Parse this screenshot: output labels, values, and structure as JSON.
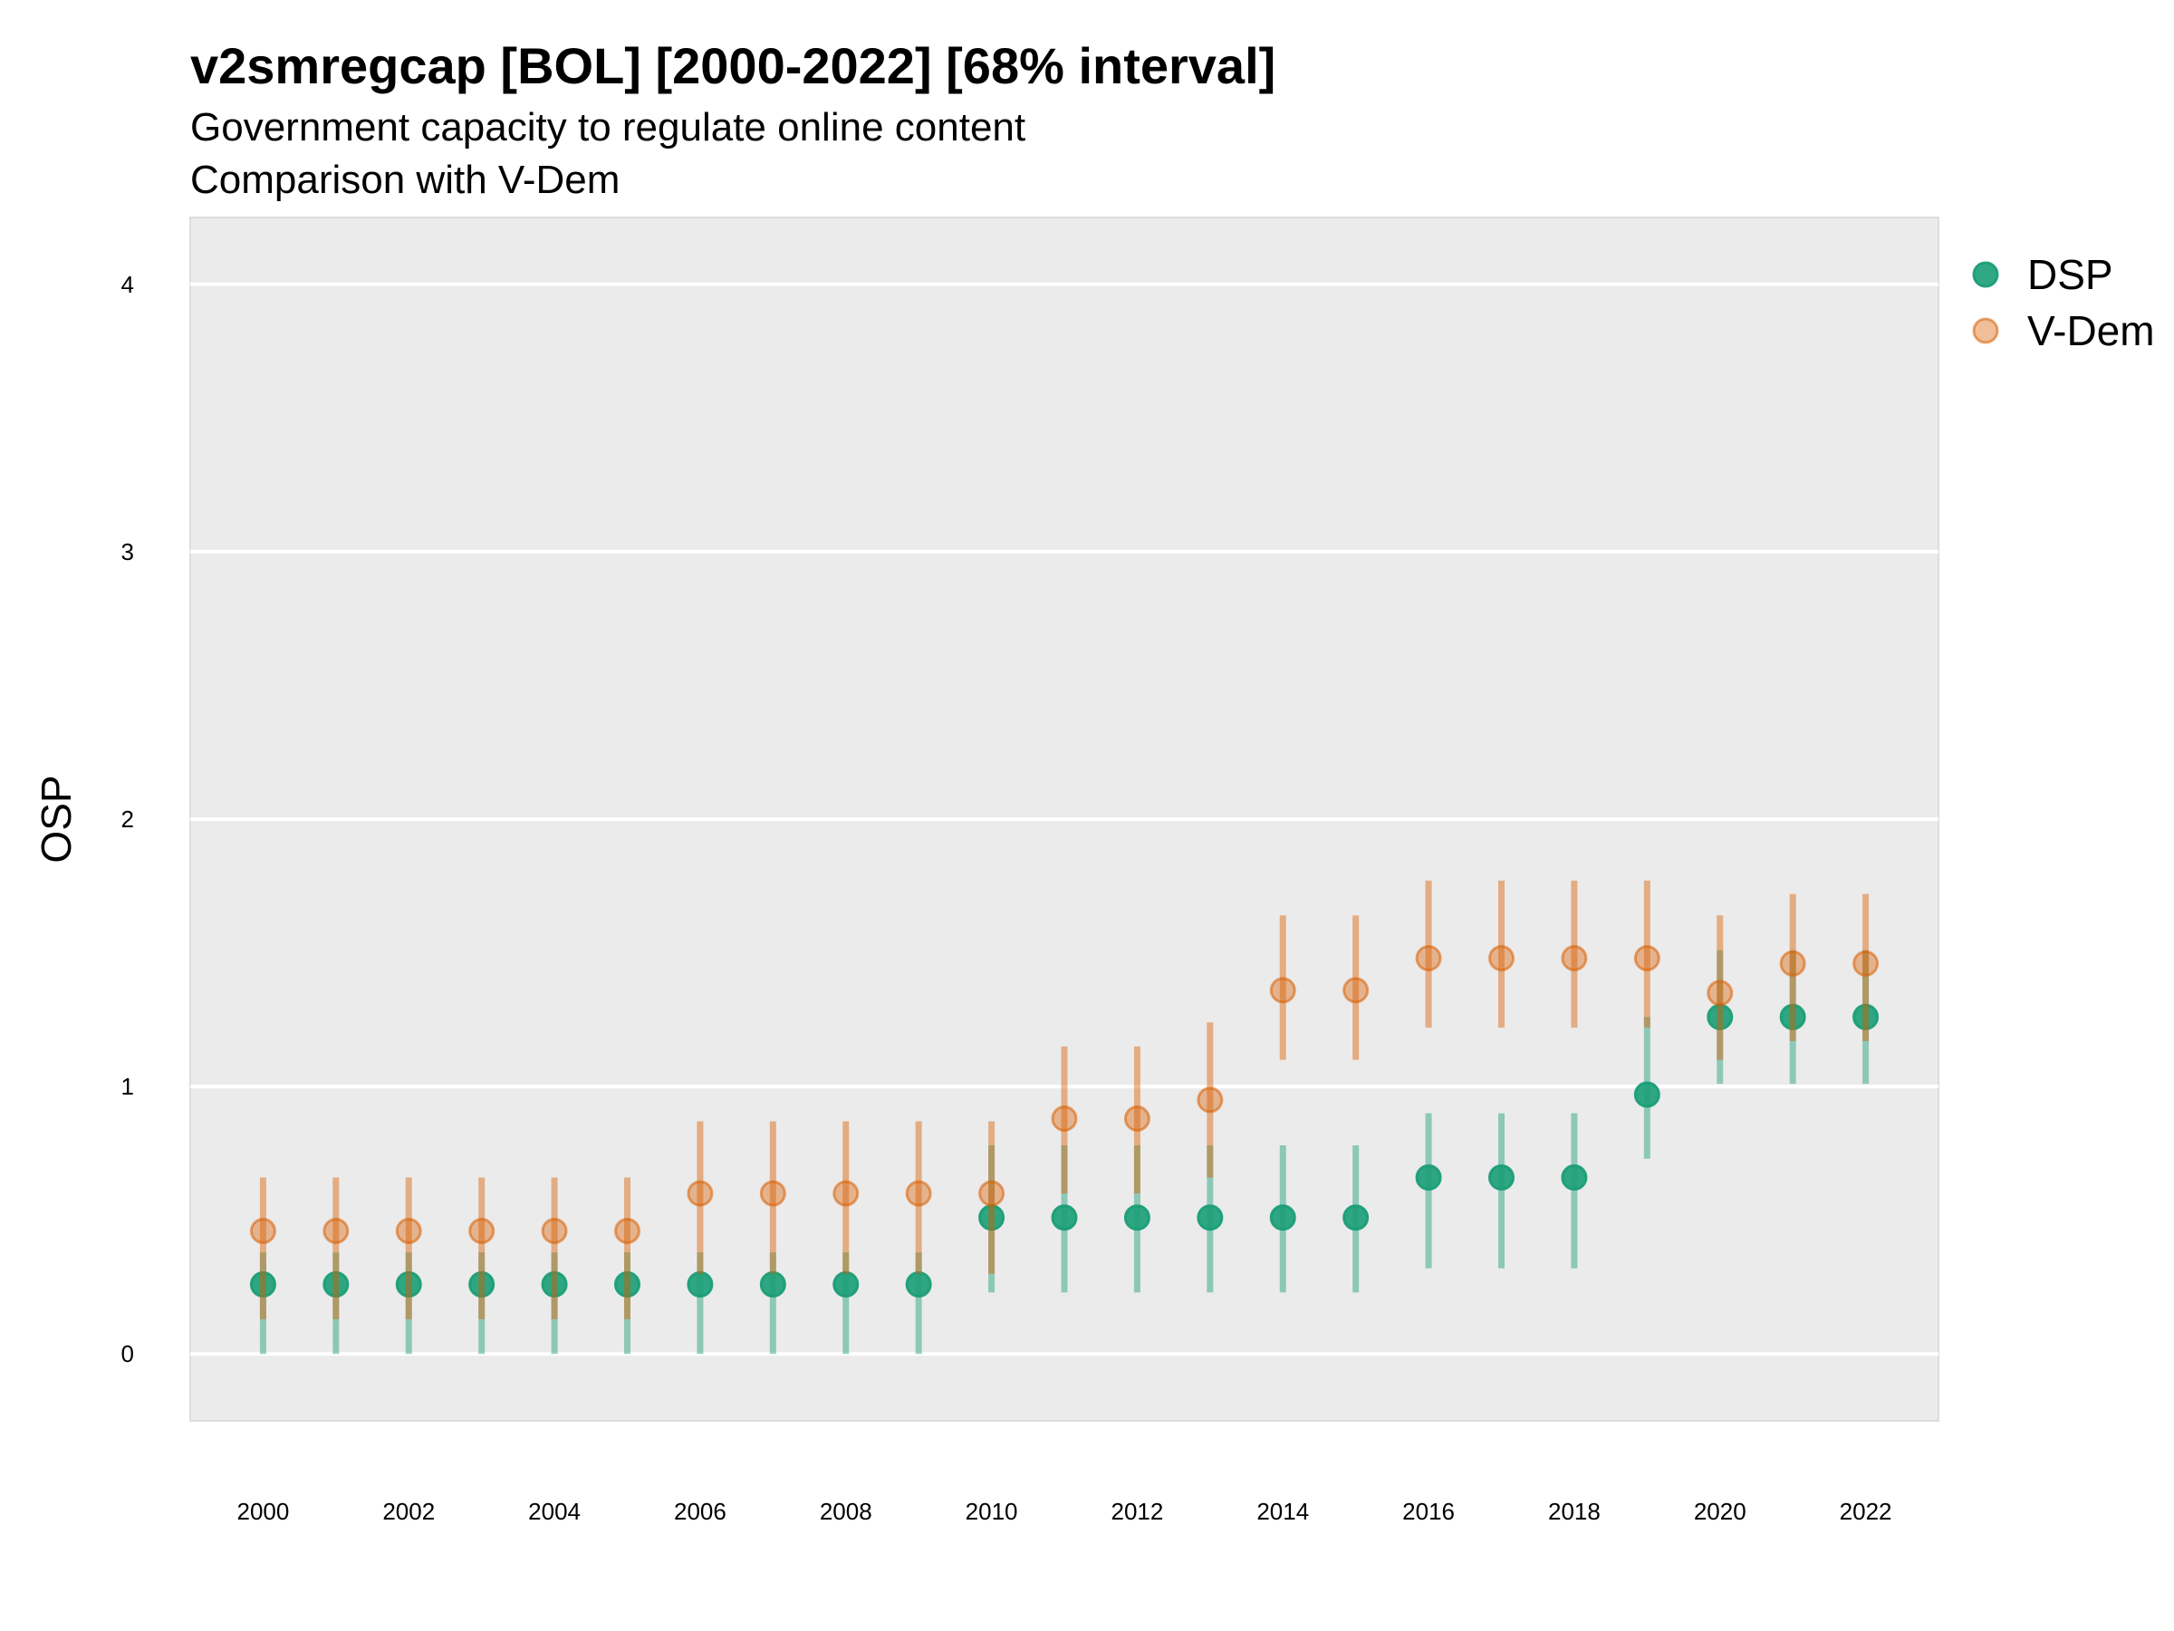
{
  "chart_data": {
    "type": "scatter",
    "title": "v2smregcap [BOL] [2000-2022] [68% interval]",
    "subtitle_lines": [
      "Government capacity to regulate online content",
      "Comparison with V-Dem"
    ],
    "ylabel": "OSP",
    "xlabel": "",
    "x_ticks": [
      "2000",
      "2002",
      "2004",
      "2006",
      "2008",
      "2010",
      "2012",
      "2014",
      "2016",
      "2018",
      "2020",
      "2022"
    ],
    "y_ticks": [
      "0",
      "1",
      "2",
      "3",
      "4"
    ],
    "ylim": [
      -0.25,
      4.25
    ],
    "xlim": [
      1999.0,
      2023.0
    ],
    "grid": true,
    "legend_position": "right",
    "series": [
      {
        "name": "DSP",
        "color": "#1b9e77",
        "x": [
          2000,
          2001,
          2002,
          2003,
          2004,
          2005,
          2006,
          2007,
          2008,
          2009,
          2010,
          2011,
          2012,
          2013,
          2014,
          2015,
          2016,
          2017,
          2018,
          2019,
          2020,
          2021,
          2022
        ],
        "values": [
          0.26,
          0.26,
          0.26,
          0.26,
          0.26,
          0.26,
          0.26,
          0.26,
          0.26,
          0.26,
          0.51,
          0.51,
          0.51,
          0.51,
          0.51,
          0.51,
          0.66,
          0.66,
          0.66,
          0.97,
          1.26,
          1.26,
          1.26
        ],
        "lower": [
          0.0,
          0.0,
          0.0,
          0.0,
          0.0,
          0.0,
          0.0,
          0.0,
          0.0,
          0.0,
          0.23,
          0.23,
          0.23,
          0.23,
          0.23,
          0.23,
          0.32,
          0.32,
          0.32,
          0.73,
          1.01,
          1.01,
          1.01
        ],
        "upper": [
          0.38,
          0.38,
          0.38,
          0.38,
          0.38,
          0.38,
          0.38,
          0.38,
          0.38,
          0.38,
          0.78,
          0.78,
          0.78,
          0.78,
          0.78,
          0.78,
          0.9,
          0.9,
          0.9,
          1.26,
          1.51,
          1.51,
          1.51
        ]
      },
      {
        "name": "V-Dem",
        "color": "#d95f02",
        "x": [
          2000,
          2001,
          2002,
          2003,
          2004,
          2005,
          2006,
          2007,
          2008,
          2009,
          2010,
          2011,
          2012,
          2013,
          2014,
          2015,
          2016,
          2017,
          2018,
          2019,
          2020,
          2021,
          2022
        ],
        "values": [
          0.46,
          0.46,
          0.46,
          0.46,
          0.46,
          0.46,
          0.6,
          0.6,
          0.6,
          0.6,
          0.6,
          0.88,
          0.88,
          0.95,
          1.36,
          1.36,
          1.48,
          1.48,
          1.48,
          1.48,
          1.35,
          1.46,
          1.46
        ],
        "lower": [
          0.13,
          0.13,
          0.13,
          0.13,
          0.13,
          0.13,
          0.3,
          0.3,
          0.3,
          0.3,
          0.3,
          0.6,
          0.6,
          0.66,
          1.1,
          1.1,
          1.22,
          1.22,
          1.22,
          1.22,
          1.1,
          1.17,
          1.17
        ],
        "upper": [
          0.66,
          0.66,
          0.66,
          0.66,
          0.66,
          0.66,
          0.87,
          0.87,
          0.87,
          0.87,
          0.87,
          1.15,
          1.15,
          1.24,
          1.64,
          1.64,
          1.77,
          1.77,
          1.77,
          1.77,
          1.64,
          1.72,
          1.72
        ]
      }
    ]
  }
}
